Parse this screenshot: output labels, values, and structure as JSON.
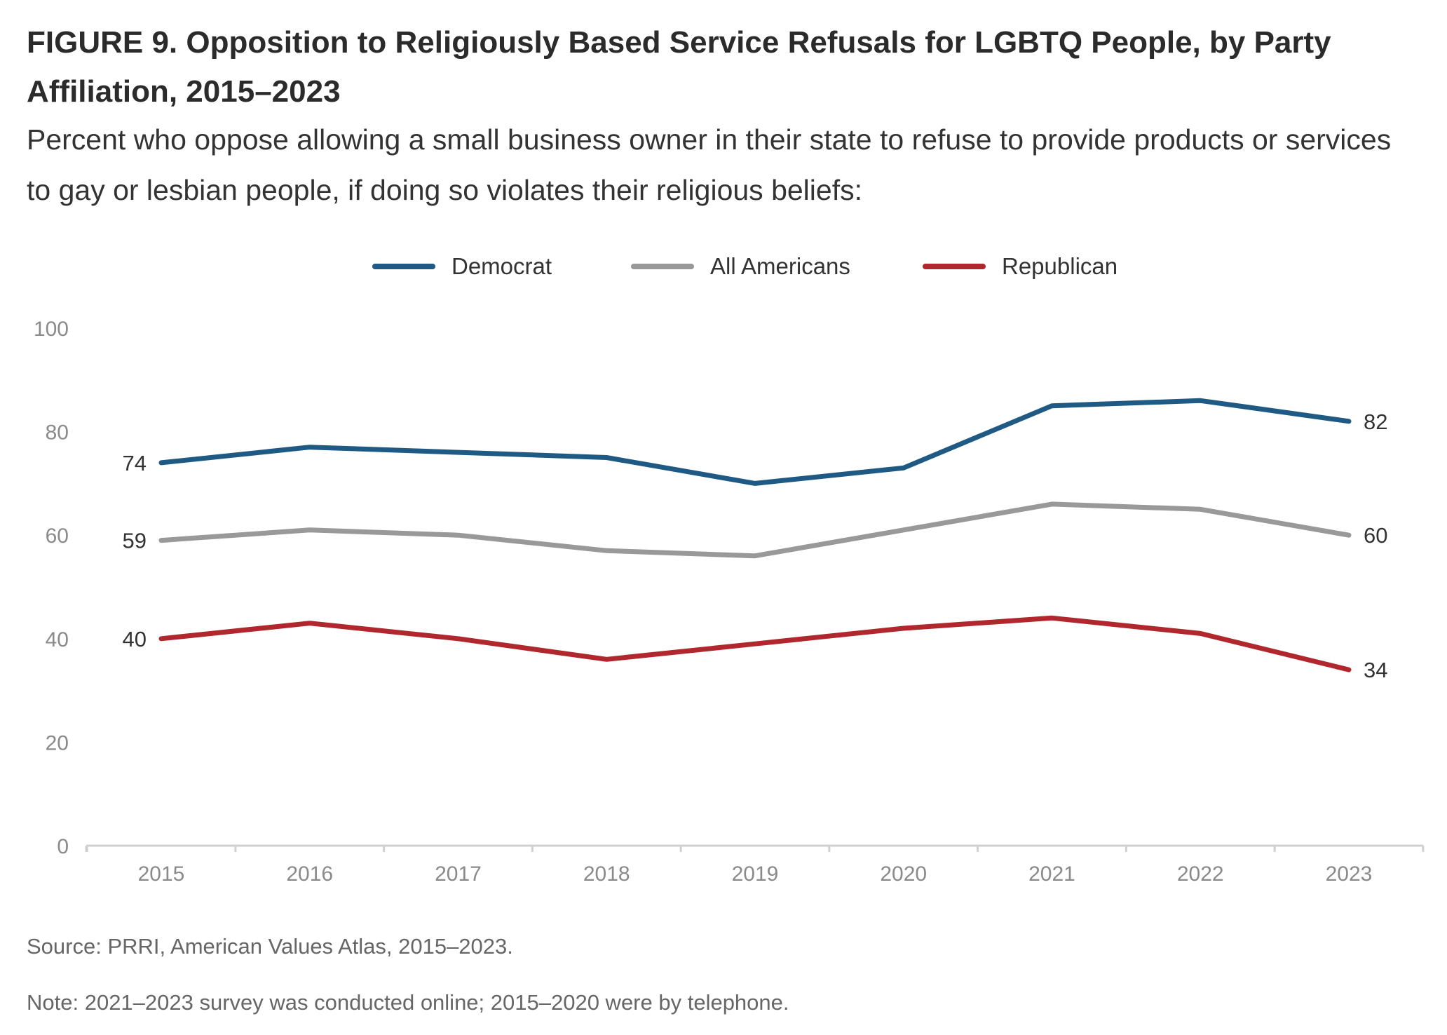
{
  "title": "FIGURE 9. Opposition to Religiously Based Service Refusals for LGBTQ People, by Party Affiliation, 2015–2023",
  "subtitle": "Percent who oppose allowing a small business owner in their state to refuse to provide products or services to gay or lesbian people, if doing so violates their religious beliefs:",
  "source": "Source: PRRI, American Values Atlas, 2015–2023.",
  "note": "Note: 2021–2023 survey was conducted online; 2015–2020 were by telephone.",
  "chart_data": {
    "type": "line",
    "title": "",
    "xlabel": "",
    "ylabel": "",
    "x": [
      "2015",
      "2016",
      "2017",
      "2018",
      "2019",
      "2020",
      "2021",
      "2022",
      "2023"
    ],
    "ylim": [
      0,
      100
    ],
    "yticks": [
      0,
      20,
      40,
      60,
      80,
      100
    ],
    "grid": false,
    "legend_position": "top-center",
    "series": [
      {
        "name": "Democrat",
        "color": "#1f5a84",
        "values": [
          74,
          77,
          76,
          75,
          70,
          73,
          85,
          86,
          82
        ],
        "labels": {
          "0": "74",
          "8": "82"
        }
      },
      {
        "name": "All Americans",
        "color": "#999999",
        "values": [
          59,
          61,
          60,
          57,
          56,
          61,
          66,
          65,
          60
        ],
        "labels": {
          "0": "59",
          "8": "60"
        }
      },
      {
        "name": "Republican",
        "color": "#b0282d",
        "values": [
          40,
          43,
          40,
          36,
          39,
          42,
          44,
          41,
          34
        ],
        "labels": {
          "0": "40",
          "8": "34"
        }
      }
    ]
  }
}
